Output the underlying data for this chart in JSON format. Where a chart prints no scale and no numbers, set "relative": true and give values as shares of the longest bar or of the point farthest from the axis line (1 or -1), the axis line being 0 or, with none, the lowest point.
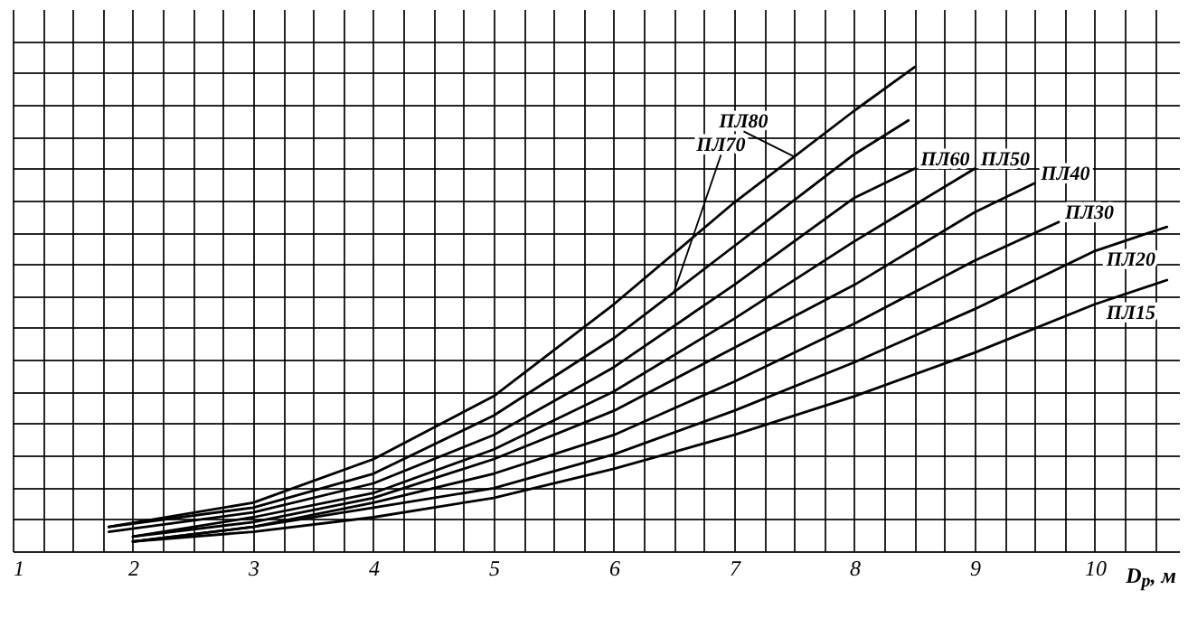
{
  "chart_data": {
    "type": "line",
    "relative": true,
    "xlabel": "D$_{р}$, м",
    "xlim": [
      1,
      10.7
    ],
    "xticks": [
      1,
      {
        "value": 1.25,
        "label": null
      },
      {
        "value": 1.5,
        "label": null
      },
      {
        "value": 1.75,
        "label": null
      },
      2,
      {
        "value": 2.25,
        "label": null
      },
      {
        "value": 2.5,
        "label": null
      },
      {
        "value": 2.75,
        "label": null
      },
      3,
      {
        "value": 3.25,
        "label": null
      },
      {
        "value": 3.5,
        "label": null
      },
      {
        "value": 3.75,
        "label": null
      },
      4,
      {
        "value": 4.25,
        "label": null
      },
      {
        "value": 4.5,
        "label": null
      },
      {
        "value": 4.75,
        "label": null
      },
      5,
      {
        "value": 5.25,
        "label": null
      },
      {
        "value": 5.5,
        "label": null
      },
      {
        "value": 5.75,
        "label": null
      },
      6,
      {
        "value": 6.25,
        "label": null
      },
      {
        "value": 6.5,
        "label": null
      },
      {
        "value": 6.75,
        "label": null
      },
      7,
      {
        "value": 7.25,
        "label": null
      },
      {
        "value": 7.5,
        "label": null
      },
      {
        "value": 7.75,
        "label": null
      },
      8,
      {
        "value": 8.25,
        "label": null
      },
      {
        "value": 8.5,
        "label": null
      },
      {
        "value": 8.75,
        "label": null
      },
      9,
      {
        "value": 9.25,
        "label": null
      },
      {
        "value": 9.5,
        "label": null
      },
      {
        "value": 9.75,
        "label": null
      },
      10,
      {
        "value": 10.25,
        "label": null
      },
      {
        "value": 10.5,
        "label": null
      }
    ],
    "grid": true,
    "marker": "none",
    "line_style": "solid",
    "series": [
      {
        "name": "ПЛ80",
        "color": "#000000",
        "x": [
          1.8,
          3,
          4,
          5,
          6,
          7,
          8,
          8.5
        ],
        "values": [
          0.05,
          0.1,
          0.19,
          0.32,
          0.51,
          0.72,
          0.91,
          1.0
        ]
      },
      {
        "name": "ПЛ70",
        "color": "#000000",
        "x": [
          1.8,
          3,
          4,
          5,
          6,
          7,
          8,
          8.45
        ],
        "values": [
          0.05,
          0.09,
          0.16,
          0.28,
          0.44,
          0.63,
          0.82,
          0.89
        ]
      },
      {
        "name": "ПЛ60",
        "color": "#000000",
        "x": [
          1.8,
          3,
          4,
          5,
          6,
          7,
          8,
          8.5
        ],
        "values": [
          0.04,
          0.08,
          0.14,
          0.24,
          0.38,
          0.55,
          0.73,
          0.79
        ]
      },
      {
        "name": "ПЛ50",
        "color": "#000000",
        "x": [
          2,
          3,
          4,
          5,
          6,
          7,
          8,
          9
        ],
        "values": [
          0.03,
          0.07,
          0.12,
          0.21,
          0.33,
          0.48,
          0.64,
          0.79
        ]
      },
      {
        "name": "ПЛ40",
        "color": "#000000",
        "x": [
          2,
          3,
          4,
          5,
          6,
          7,
          8,
          9,
          9.5
        ],
        "values": [
          0.03,
          0.06,
          0.11,
          0.19,
          0.29,
          0.42,
          0.55,
          0.7,
          0.76
        ]
      },
      {
        "name": "ПЛ30",
        "color": "#000000",
        "x": [
          2,
          3,
          4,
          5,
          6,
          7,
          8,
          9,
          9.7
        ],
        "values": [
          0.02,
          0.05,
          0.1,
          0.16,
          0.24,
          0.35,
          0.47,
          0.6,
          0.68
        ]
      },
      {
        "name": "ПЛ20",
        "color": "#000000",
        "x": [
          2,
          3,
          4,
          5,
          6,
          7,
          8,
          9,
          10,
          10.6
        ],
        "values": [
          0.02,
          0.05,
          0.09,
          0.13,
          0.2,
          0.29,
          0.39,
          0.5,
          0.62,
          0.67
        ]
      },
      {
        "name": "ПЛ15",
        "color": "#000000",
        "x": [
          2,
          3,
          4,
          5,
          6,
          7,
          8,
          9,
          10,
          10.6
        ],
        "values": [
          0.02,
          0.04,
          0.07,
          0.11,
          0.17,
          0.24,
          0.32,
          0.41,
          0.51,
          0.56
        ]
      }
    ]
  }
}
